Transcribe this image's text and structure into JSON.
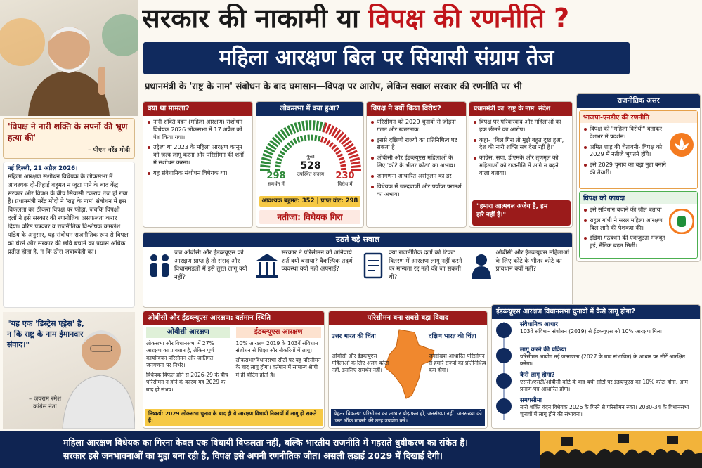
{
  "header": {
    "title_part1": "सरकार की नाकामी या",
    "title_part2": "विपक्ष की रणनीति ?",
    "subtitle": "महिला आरक्षण बिल पर सियासी संग्राम तेज",
    "tagline": "प्रधानमंत्री के 'राष्ट्र के नाम' संबोधन के बाद घमासान—विपक्ष पर आरोप, लेकिन सवाल सरकार की रणनीति पर भी"
  },
  "left": {
    "quote": "'विपक्ष ने नारी शक्ति के सपनों की भ्रूण हत्या की'",
    "quote_by": "– पीएम नरेंद्र मोदी",
    "dateline": "नई दिल्ली, 21 अप्रैल 2026।",
    "body": "महिला आरक्षण संशोधन विधेयक के लोकसभा में आवश्यक दो-तिहाई बहुमत न जुटा पाने के बाद केंद्र सरकार और विपक्ष के बीच सियासी टकराव तेज हो गया है। प्रधानमंत्री नरेंद्र मोदी ने 'राष्ट्र के नाम' संबोधन में इस विफलता का ठीकरा विपक्ष पर फोड़ा, जबकि विपक्षी दलों ने इसे सरकार की रणनीतिक असफलता करार दिया। वरिष्ठ पत्रकार व राजनीतिक विश्लेषक कमलेश पांडेय के अनुसार, यह संबोधन राजनीतिक रूप से विपक्ष को घेरने और सरकार की छवि बचाने का प्रयास अधिक प्रतीत होता है, न कि ठोस जवाबदेही का।",
    "quote2": "\"यह एक 'डिस्ट्रेस एड्रेस' है, न कि राष्ट्र के नाम ईमानदार संवाद।\"",
    "quote2_by": "– जयराम रमेश",
    "quote2_role": "कांग्रेस नेता"
  },
  "case": {
    "title": "क्या था मामला?",
    "points": [
      "नारी शक्ति वंदन (महिला आरक्षण) संशोधन विधेयक 2026 लोकसभा में 17 अप्रैल को पेश किया गया।",
      "उद्देश्य था 2023 के महिला आरक्षण कानून को जल्द लागू करना और परिसीमन की शर्तों में संशोधन करना।",
      "यह संवैधानिक संशोधन विधेयक था।"
    ]
  },
  "loksabha": {
    "title": "लोकसभा में क्या हुआ?",
    "total_label": "कुल",
    "total": "528",
    "total_sub": "उपस्थित सदस्य",
    "for": "298",
    "for_label": "समर्थन में",
    "against": "230",
    "against_label": "विरोध में",
    "majority": "आवश्यक बहुमत: 352 | प्राप्त वोट: 298",
    "result": "नतीजा: विधेयक गिरा"
  },
  "opposition": {
    "title": "विपक्ष ने क्यों किया विरोध?",
    "points": [
      "परिसीमन को 2029 चुनावों से जोड़ना गलत और खतरनाक।",
      "इससे दक्षिणी राज्यों का प्रतिनिधित्व घट सकता है।",
      "ओबीसी और ईडब्ल्यूएस महिलाओं के लिए 'कोटे के भीतर कोटा' का अभाव।",
      "जनगणना आधारित असंतुलन का डर।",
      "विधेयक में जल्दबाजी और पर्याप्त परामर्श का अभाव।"
    ]
  },
  "pm_address": {
    "title": "प्रधानमंत्री का 'राष्ट्र के नाम' संदेश",
    "points": [
      "विपक्ष पर परिवारवाद और महिलाओं का हक छीनने का आरोप।",
      "कहा- \"बिल गिरा तो मुझे बहुत दुख हुआ, देश की नारी शक्ति सब देख रही है।\"",
      "कांग्रेस, सपा, डीएमके और तृणमूल को महिलाओं को राजनीति में आगे न बढ़ने वाला बताया।"
    ],
    "quote": "\"हमारा आत्मबल अजेय है, हम हारे नहीं हैं।\""
  },
  "impact": {
    "title": "राजनीतिक असर",
    "bjp": {
      "title": "भाजपा-एनडीए की रणनीति",
      "points": [
        "विपक्ष को \"महिला विरोधी\" बताकर देशभर में प्रदर्शन।",
        "अमित शाह की चेतावनी- विपक्ष को 2029 में नतीजे भुगतने होंगे।",
        "इसे 2029 चुनाव का बड़ा मुद्दा बनाने की तैयारी।"
      ]
    },
    "opposition": {
      "title": "विपक्ष को फायदा",
      "points": [
        "इसे संविधान बचाने की जीत बताया।",
        "राहुल गांधी ने सरल महिला आरक्षण बिल लाने की पेशकश की।",
        "इंडिया गठबंधन की एकजुटता मजबूत हुई, नैतिक बढ़त मिली।"
      ]
    }
  },
  "questions": {
    "title": "उठते बड़े सवाल",
    "items": [
      "जब ओबीसी और ईडब्ल्यूएस को आरक्षण प्राप्त है तो संसद और विधानमंडलों में इसे तुरंत लागू क्यों नहीं?",
      "सरकार ने परिसीमन को अनिवार्य शर्त क्यों बनाया? वैकल्पिक तदर्थ व्यवस्था क्यों नहीं अपनाई?",
      "क्या राजनीतिक दलों को टिकट वितरण में आरक्षण लागू नहीं करने पर मान्यता रद्द नहीं की जा सकती थी?",
      "ओबीसी और ईडब्ल्यूएस महिलाओं के लिए कोटे के भीतर कोटे का प्रावधान क्यों नहीं?"
    ]
  },
  "reservation": {
    "title": "ओबीसी और ईडब्ल्यूएस आरक्षण: वर्तमान स्थिति",
    "obc": {
      "title": "ओबीसी आरक्षण",
      "points": [
        "लोकसभा और विधानसभा में 27% आरक्षण का प्रावधान है, लेकिन पूर्ण कार्यान्वयन परिसीमन और जातिगत जनगणना पर निर्भर।",
        "विधेयक विफल होने से 2026-29 के बीच परिसीमन न होने के कारण यह 2029 के बाद ही संभव।"
      ]
    },
    "ews": {
      "title": "ईडब्ल्यूएस आरक्षण",
      "points": [
        "10% आरक्षण 2019 के 103वें संविधान संशोधन से शिक्षा और नौकरियों में लागू।",
        "लोकसभा/विधानसभा सीटों पर यह परिसीमन के बाद लागू होगा। वर्तमान में सामान्य श्रेणी में ही वोटिंग होती है।"
      ]
    },
    "conclusion": "निष्कर्ष: 2029 लोकसभा चुनाव के बाद ही ये आरक्षण विधायी निकायों में लागू हो सकते हैं।"
  },
  "delimitation": {
    "title": "परिसीमन बना सबसे बड़ा विवाद",
    "north": {
      "title": "उत्तर भारत की चिंता",
      "text": "ओबीसी और ईडब्ल्यूएस महिलाओं के लिए अलग कोटा नहीं, इसलिए समर्थन नहीं।"
    },
    "south": {
      "title": "दक्षिण भारत की चिंता",
      "text": "जनसंख्या आधारित परिसीमन से हमारे राज्यों का प्रतिनिधित्व कम होगा।"
    },
    "footer": "बेहतर विकल्प: परिसीमन का आधार बोझफल हो, जनसंख्या नहीं। जनसंख्या को 'कट ऑफ मार्क्स' की तरह उपयोग करें।"
  },
  "ews_apply": {
    "title": "ईडब्ल्यूएस आरक्षण विधानसभा चुनावों में कैसे लागू होगा?",
    "items": [
      {
        "title": "संवैधानिक आधार",
        "text": "103वें संविधान संशोधन (2019) से ईडब्ल्यूएस को 10% आरक्षण मिला।"
      },
      {
        "title": "लागू करने की प्रक्रिया",
        "text": "परिसीमन आयोग नई जनगणना (2027 के बाद संभावित) के आधार पर सीटें आरक्षित करेगा।"
      },
      {
        "title": "कैसे लागू होगा?",
        "text": "एससी/एसटी/ओबीसी कोटे के बाद बची सीटों पर ईडब्ल्यूएस का 10% कोटा होगा, आम प्रमाण-पत्र आधारित होगा।"
      },
      {
        "title": "समयसीमा",
        "text": "नारी शक्ति वंदन विधेयक 2026 के गिरने से परिसीमन रुका। 2030-34 के विधानसभा चुनावों में लागू होने की संभावना।"
      }
    ]
  },
  "footer": [
    "महिला आरक्षण विधेयक का गिरना केवल एक विधायी विफलता नहीं, बल्कि भारतीय राजनीति में गहराते धुवीकरण का संकेत है।",
    "सरकार इसे जनभावनाओं का मुद्दा बना रही है, विपक्ष इसे अपनी रणनीतिक जीत। असली लड़ाई 2029 में दिखाई देगी।"
  ]
}
